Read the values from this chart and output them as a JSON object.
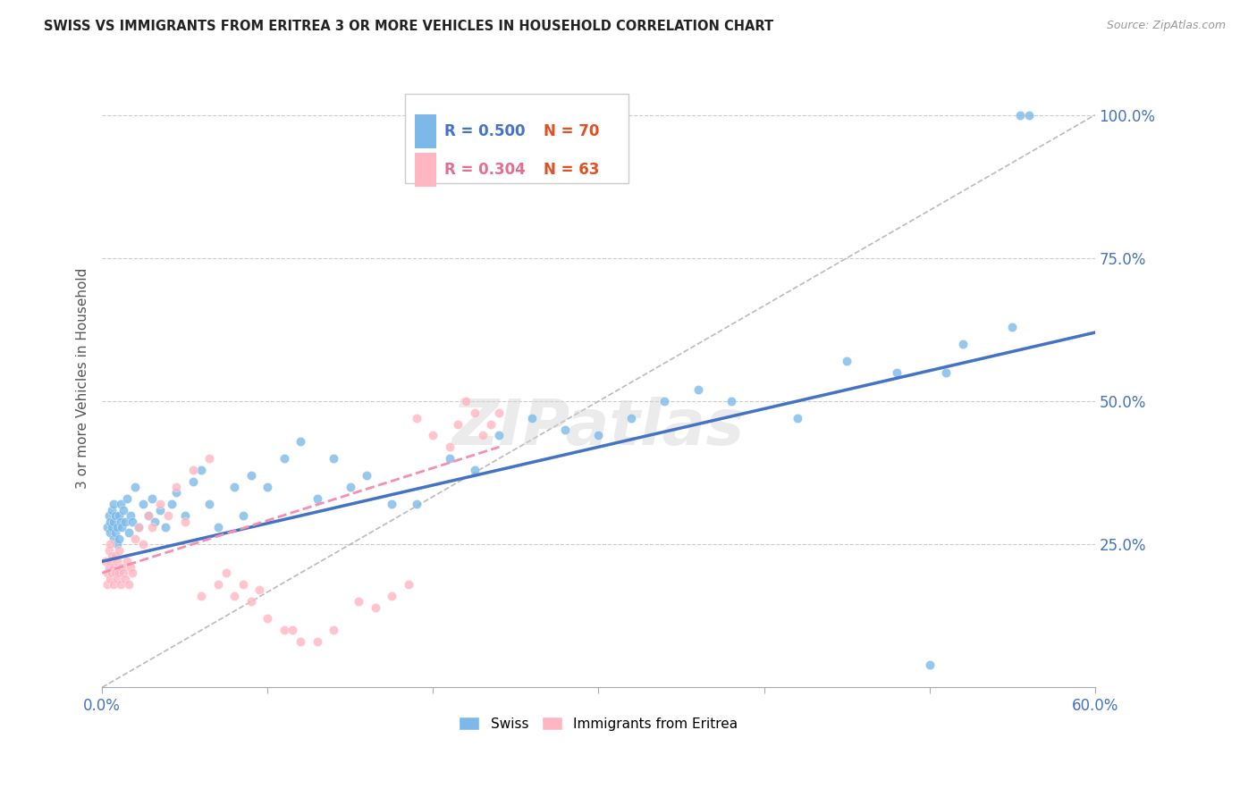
{
  "title": "SWISS VS IMMIGRANTS FROM ERITREA 3 OR MORE VEHICLES IN HOUSEHOLD CORRELATION CHART",
  "source": "Source: ZipAtlas.com",
  "ylabel": "3 or more Vehicles in Household",
  "ytick_labels": [
    "100.0%",
    "75.0%",
    "50.0%",
    "25.0%"
  ],
  "ytick_values": [
    1.0,
    0.75,
    0.5,
    0.25
  ],
  "xlim": [
    0.0,
    0.6
  ],
  "ylim": [
    0.0,
    1.08
  ],
  "legend_r_swiss": "R = 0.500",
  "legend_n_swiss": "N = 70",
  "legend_r_eritrea": "R = 0.304",
  "legend_n_eritrea": "N = 63",
  "swiss_color": "#7cb9e8",
  "eritrea_color": "#ffb6c1",
  "swiss_line_color": "#4472c4",
  "eritrea_line_color": "#f48fb1",
  "diagonal_color": "#bbbbbb",
  "background_color": "#ffffff",
  "watermark": "ZIPatlas",
  "swiss_x": [
    0.003,
    0.004,
    0.005,
    0.005,
    0.006,
    0.006,
    0.007,
    0.007,
    0.007,
    0.008,
    0.008,
    0.009,
    0.009,
    0.01,
    0.01,
    0.011,
    0.011,
    0.012,
    0.013,
    0.014,
    0.015,
    0.016,
    0.017,
    0.018,
    0.02,
    0.022,
    0.025,
    0.028,
    0.03,
    0.032,
    0.035,
    0.038,
    0.042,
    0.045,
    0.05,
    0.055,
    0.06,
    0.065,
    0.07,
    0.08,
    0.085,
    0.09,
    0.1,
    0.11,
    0.12,
    0.13,
    0.14,
    0.15,
    0.16,
    0.175,
    0.19,
    0.21,
    0.225,
    0.24,
    0.26,
    0.28,
    0.3,
    0.32,
    0.34,
    0.36,
    0.38,
    0.42,
    0.45,
    0.48,
    0.5,
    0.51,
    0.52,
    0.55,
    0.555,
    0.56
  ],
  "swiss_y": [
    0.28,
    0.3,
    0.27,
    0.29,
    0.28,
    0.31,
    0.26,
    0.29,
    0.32,
    0.27,
    0.3,
    0.25,
    0.28,
    0.3,
    0.26,
    0.29,
    0.32,
    0.28,
    0.31,
    0.29,
    0.33,
    0.27,
    0.3,
    0.29,
    0.35,
    0.28,
    0.32,
    0.3,
    0.33,
    0.29,
    0.31,
    0.28,
    0.32,
    0.34,
    0.3,
    0.36,
    0.38,
    0.32,
    0.28,
    0.35,
    0.3,
    0.37,
    0.35,
    0.4,
    0.43,
    0.33,
    0.4,
    0.35,
    0.37,
    0.32,
    0.32,
    0.4,
    0.38,
    0.44,
    0.47,
    0.45,
    0.44,
    0.47,
    0.5,
    0.52,
    0.5,
    0.47,
    0.57,
    0.55,
    0.04,
    0.55,
    0.6,
    0.63,
    1.0,
    1.0
  ],
  "eritrea_x": [
    0.002,
    0.003,
    0.003,
    0.004,
    0.004,
    0.005,
    0.005,
    0.005,
    0.006,
    0.006,
    0.007,
    0.007,
    0.008,
    0.008,
    0.009,
    0.009,
    0.01,
    0.01,
    0.011,
    0.012,
    0.013,
    0.014,
    0.015,
    0.016,
    0.017,
    0.018,
    0.02,
    0.022,
    0.025,
    0.028,
    0.03,
    0.035,
    0.04,
    0.045,
    0.05,
    0.055,
    0.06,
    0.065,
    0.07,
    0.075,
    0.08,
    0.085,
    0.09,
    0.095,
    0.1,
    0.11,
    0.115,
    0.12,
    0.13,
    0.14,
    0.155,
    0.165,
    0.175,
    0.185,
    0.19,
    0.2,
    0.21,
    0.215,
    0.22,
    0.225,
    0.23,
    0.235,
    0.24
  ],
  "eritrea_y": [
    0.22,
    0.18,
    0.2,
    0.21,
    0.24,
    0.19,
    0.22,
    0.25,
    0.2,
    0.23,
    0.18,
    0.21,
    0.2,
    0.23,
    0.19,
    0.22,
    0.2,
    0.24,
    0.18,
    0.21,
    0.2,
    0.19,
    0.22,
    0.18,
    0.21,
    0.2,
    0.26,
    0.28,
    0.25,
    0.3,
    0.28,
    0.32,
    0.3,
    0.35,
    0.29,
    0.38,
    0.16,
    0.4,
    0.18,
    0.2,
    0.16,
    0.18,
    0.15,
    0.17,
    0.12,
    0.1,
    0.1,
    0.08,
    0.08,
    0.1,
    0.15,
    0.14,
    0.16,
    0.18,
    0.47,
    0.44,
    0.42,
    0.46,
    0.5,
    0.48,
    0.44,
    0.46,
    0.48
  ]
}
